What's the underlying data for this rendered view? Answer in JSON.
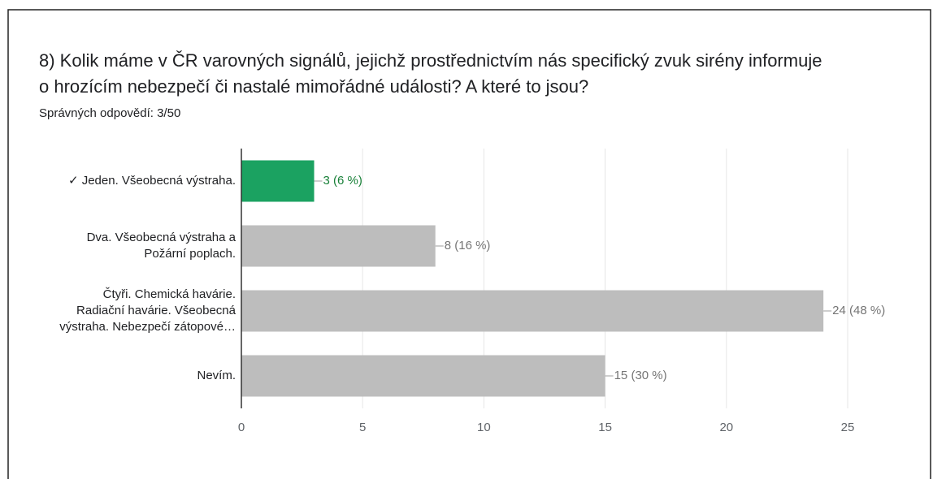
{
  "chart_data": {
    "type": "barh",
    "title": [
      "8) Kolik máme v ČR varovných signálů, jejichž prostřednictvím nás specifický zvuk sirény informuje",
      "o hrozícím nebezpečí či nastalé mimořádné události? A které to jsou?"
    ],
    "subtitle": "Správných odpovědí: 3/50",
    "categories": [
      [
        "✓ Jeden. Všeobecná výstraha."
      ],
      [
        "Dva. Všeobecná výstraha a",
        "Požární poplach."
      ],
      [
        "Čtyři. Chemická havárie.",
        "Radiační havárie. Všeobecná",
        "výstraha. Nebezpečí zátopové…"
      ],
      [
        "Nevím."
      ]
    ],
    "values": [
      3,
      8,
      24,
      15
    ],
    "value_labels": [
      "3 (6 %)",
      "8 (16 %)",
      "24 (48 %)",
      "15 (30 %)"
    ],
    "colors": [
      "#1ba261",
      "#bdbdbd",
      "#bdbdbd",
      "#bdbdbd"
    ],
    "label_colors": [
      "#188038",
      "#757575",
      "#757575",
      "#757575"
    ],
    "xlim": [
      0,
      25
    ],
    "xticks": [
      0,
      5,
      10,
      15,
      20,
      25
    ],
    "grid": true
  }
}
